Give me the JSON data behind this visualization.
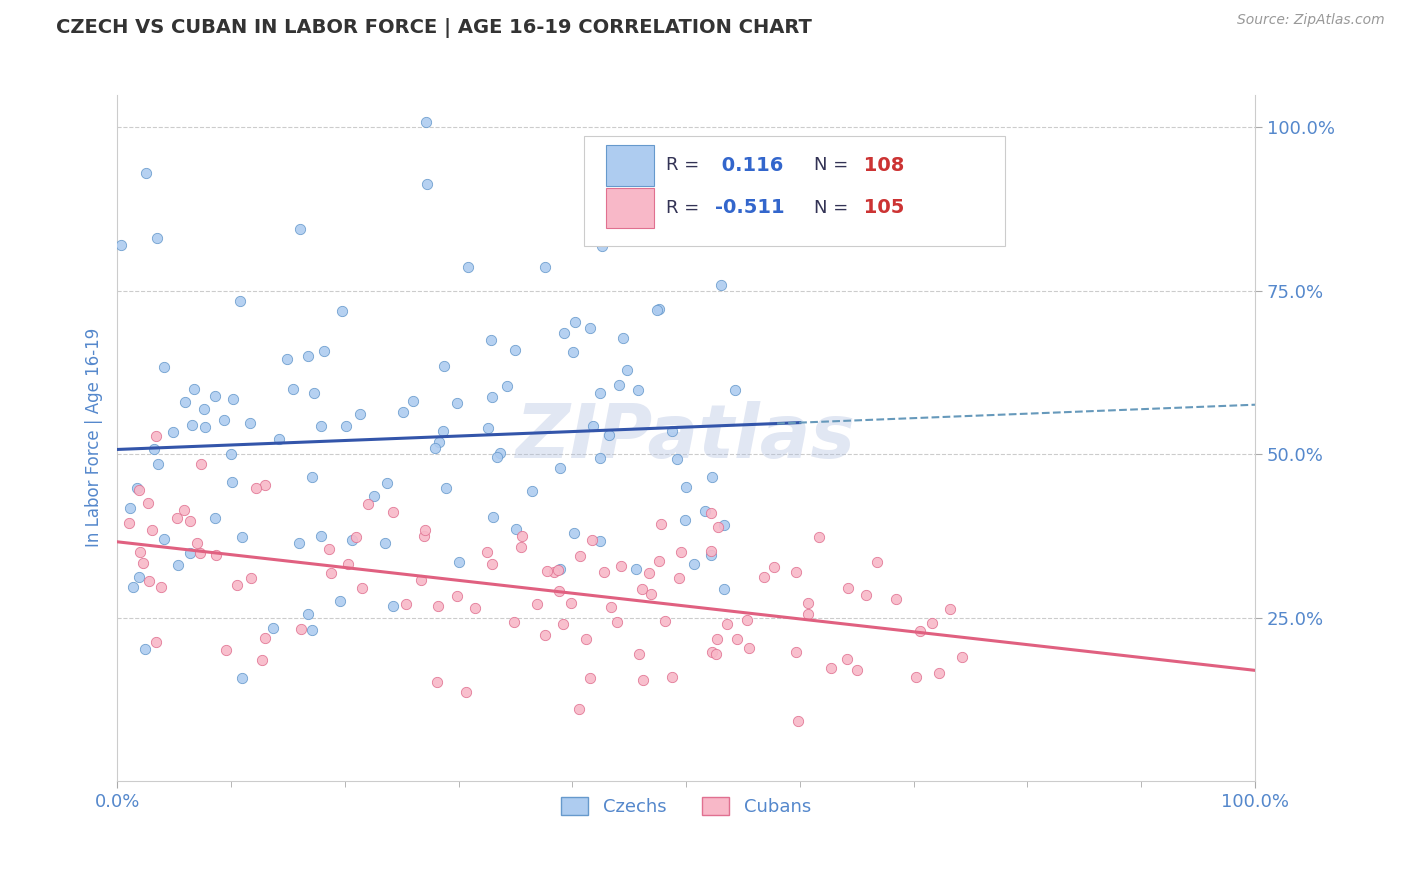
{
  "title": "CZECH VS CUBAN IN LABOR FORCE | AGE 16-19 CORRELATION CHART",
  "source_text": "Source: ZipAtlas.com",
  "ylabel": "In Labor Force | Age 16-19",
  "czech_color": "#aeccf0",
  "cuban_color": "#f8b8c8",
  "czech_edge_color": "#6699cc",
  "cuban_edge_color": "#e07090",
  "czech_line_color": "#3355aa",
  "cuban_line_color": "#e06080",
  "dashed_line_color": "#6699bb",
  "R_czech": 0.116,
  "N_czech": 108,
  "R_cuban": -0.511,
  "N_cuban": 105,
  "watermark": "ZIPatlas",
  "background_color": "#ffffff",
  "grid_color": "#cccccc",
  "title_color": "#333333",
  "axis_label_color": "#5588cc",
  "ytick_vals": [
    0.25,
    0.5,
    0.75,
    1.0
  ],
  "ytick_labels": [
    "25.0%",
    "50.0%",
    "75.0%",
    "100.0%"
  ],
  "xtick_labels": [
    "0.0%",
    "100.0%"
  ],
  "legend_r_color": "#333355",
  "legend_val_color": "#3366cc",
  "legend_n_color": "#333355",
  "legend_n_val_color": "#cc3333",
  "xmin": 0.0,
  "xmax": 1.0,
  "ymin": 0.0,
  "ymax": 1.05
}
